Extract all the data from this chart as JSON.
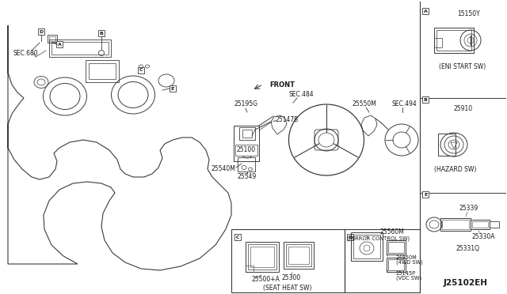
{
  "bg_color": "#ffffff",
  "diagram_id": "J25102EH",
  "labels": {
    "sec_680": "SEC.680",
    "sec_484_top": "SEC.484",
    "sec_494_right": "SEC.494",
    "front": "FRONT",
    "part_25147B": "25147B",
    "part_25100": "25100",
    "part_25540M": "25540M",
    "part_25549": "25549",
    "part_25195G": "25195G",
    "part_25550M": "25550M",
    "part_A_num": "15150Y",
    "part_A_name": "(ENI START SW)",
    "part_B_num": "25910",
    "part_B_name": "(HAZARD SW)",
    "part_C_25500": "25500+A",
    "part_C_25300": "25300",
    "part_C_name": "(SEAT HEAT SW)",
    "part_D_25560M": "25560M",
    "part_D_name": "(MIRROR CONTROL SW)",
    "part_D_24950M": "24950M",
    "part_D_4WD": "(4WD SW)",
    "part_D_25145P": "25145P",
    "part_D_VDC": "(VDC SW)",
    "part_E_25339": "25339",
    "part_E_25330A": "25330A",
    "part_E_25331Q": "25331Q",
    "label_A": "A",
    "label_B": "B",
    "label_C": "C",
    "label_D": "D",
    "label_E": "E"
  },
  "colors": {
    "line": "#3a3a3a",
    "text": "#1a1a1a",
    "bg": "#ffffff"
  }
}
